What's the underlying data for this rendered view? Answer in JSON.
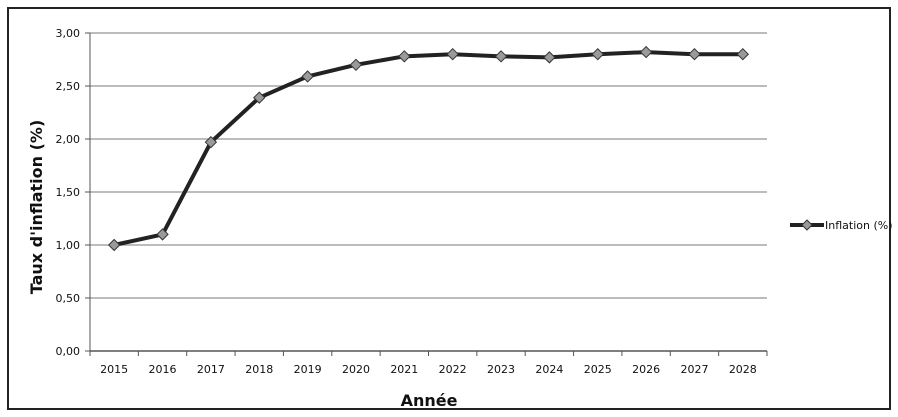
{
  "chart_data": {
    "type": "line",
    "title": "",
    "xlabel": "Année",
    "ylabel": "Taux d'inflation (%)",
    "categories": [
      "2015",
      "2016",
      "2017",
      "2018",
      "2019",
      "2020",
      "2021",
      "2022",
      "2023",
      "2024",
      "2025",
      "2026",
      "2027",
      "2028"
    ],
    "series": [
      {
        "name": "Inflation (%)",
        "values": [
          1.0,
          1.1,
          1.97,
          2.39,
          2.59,
          2.7,
          2.78,
          2.8,
          2.78,
          2.77,
          2.8,
          2.82,
          2.8,
          2.8
        ],
        "line_color": "#222222",
        "marker_color": "#9a9a9a"
      }
    ],
    "ylim": [
      0,
      3
    ],
    "yticks": [
      "0,00",
      "0,50",
      "1,00",
      "1,50",
      "2,00",
      "2,50",
      "3,00"
    ],
    "ytick_values": [
      0,
      0.5,
      1,
      1.5,
      2,
      2.5,
      3
    ],
    "grid": true,
    "legend": "right",
    "gridline_color": "#a6a6a6"
  }
}
